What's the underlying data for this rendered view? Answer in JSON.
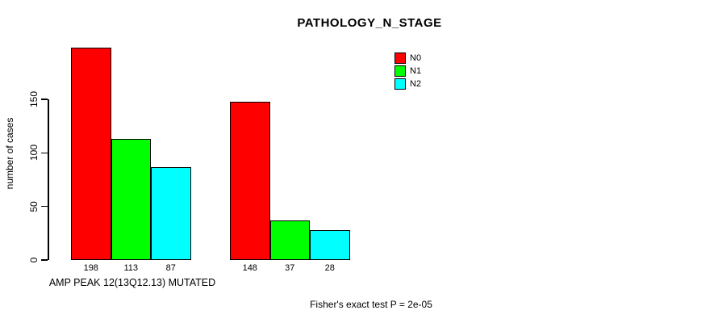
{
  "title": "PATHOLOGY_N_STAGE",
  "y_axis": {
    "label": "number of cases",
    "ticks": [
      "0",
      "50",
      "100",
      "150"
    ]
  },
  "x_axis": {
    "group_label": "AMP PEAK 12(13Q12.13) MUTATED"
  },
  "annotation": "Fisher's exact test P = 2e-05",
  "legend": {
    "items": [
      {
        "label": "N0",
        "color": "#ff0000"
      },
      {
        "label": "N1",
        "color": "#00ff00"
      },
      {
        "label": "N2",
        "color": "#00ffff"
      }
    ]
  },
  "colors": {
    "n0": "#ff0000",
    "n1": "#00ff00",
    "n2": "#00ffff",
    "axis": "#000000",
    "background": "#ffffff"
  },
  "chart_data": {
    "type": "bar",
    "title": "PATHOLOGY_N_STAGE",
    "xlabel": "",
    "ylabel": "number of cases",
    "ylim": [
      0,
      150
    ],
    "yticks": [
      0,
      50,
      100,
      150
    ],
    "grid": false,
    "legend_position": "top-right",
    "groups": [
      "AMP PEAK 12(13Q12.13) MUTATED",
      ""
    ],
    "series": [
      {
        "name": "N0",
        "color": "#ff0000",
        "values": [
          198,
          148
        ]
      },
      {
        "name": "N1",
        "color": "#00ff00",
        "values": [
          113,
          37
        ]
      },
      {
        "name": "N2",
        "color": "#00ffff",
        "values": [
          87,
          28
        ]
      }
    ],
    "bar_labels": [
      [
        198,
        113,
        87
      ],
      [
        148,
        37,
        28
      ]
    ],
    "annotation": "Fisher's exact test P = 2e-05"
  }
}
